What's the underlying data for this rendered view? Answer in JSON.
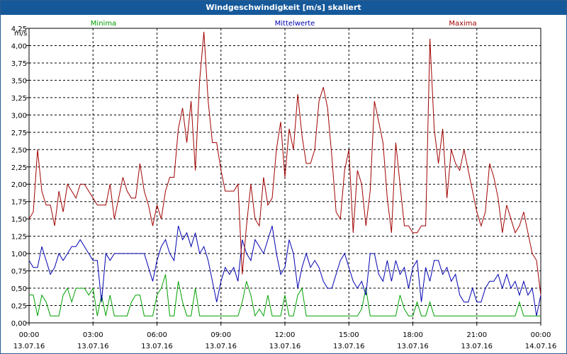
{
  "window": {
    "title": "Windgeschwindigkeit [m/s] skaliert"
  },
  "chart_data": {
    "type": "line",
    "title": "Windgeschwindigkeit [m/s] skaliert",
    "ylabel": "m/s",
    "xlabel": "",
    "ylim": [
      0,
      4.25
    ],
    "xlim_hours": [
      0,
      24
    ],
    "grid": true,
    "yticks": [
      "0,00",
      "0,25",
      "0,50",
      "0,75",
      "1,00",
      "1,25",
      "1,50",
      "1,75",
      "2,00",
      "2,25",
      "2,50",
      "2,75",
      "3,00",
      "3,25",
      "3,50",
      "3,75",
      "4,00",
      "4,25"
    ],
    "xticks": [
      {
        "time": "00:00",
        "date": "13.07.16"
      },
      {
        "time": "03:00",
        "date": "13.07.16"
      },
      {
        "time": "06:00",
        "date": "13.07.16"
      },
      {
        "time": "09:00",
        "date": "13.07.16"
      },
      {
        "time": "12:00",
        "date": "13.07.16"
      },
      {
        "time": "15:00",
        "date": "13.07.16"
      },
      {
        "time": "18:00",
        "date": "13.07.16"
      },
      {
        "time": "21:00",
        "date": "13.07.16"
      },
      {
        "time": "00:00",
        "date": "14.07.16"
      }
    ],
    "x_hours": [
      0,
      0.2,
      0.4,
      0.6,
      0.8,
      1,
      1.2,
      1.4,
      1.6,
      1.8,
      2,
      2.2,
      2.4,
      2.6,
      2.8,
      3,
      3.2,
      3.4,
      3.6,
      3.8,
      4,
      4.2,
      4.4,
      4.6,
      4.8,
      5,
      5.2,
      5.4,
      5.6,
      5.8,
      6,
      6.2,
      6.4,
      6.6,
      6.8,
      7,
      7.2,
      7.4,
      7.6,
      7.8,
      8,
      8.2,
      8.4,
      8.6,
      8.8,
      9,
      9.2,
      9.4,
      9.6,
      9.8,
      10,
      10.2,
      10.4,
      10.6,
      10.8,
      11,
      11.2,
      11.4,
      11.6,
      11.8,
      12,
      12.2,
      12.4,
      12.6,
      12.8,
      13,
      13.2,
      13.4,
      13.6,
      13.8,
      14,
      14.2,
      14.4,
      14.6,
      14.8,
      15,
      15.2,
      15.4,
      15.6,
      15.8,
      16,
      16.2,
      16.4,
      16.6,
      16.8,
      17,
      17.2,
      17.4,
      17.6,
      17.8,
      18,
      18.2,
      18.4,
      18.6,
      18.8,
      19,
      19.2,
      19.4,
      19.6,
      19.8,
      20,
      20.2,
      20.4,
      20.6,
      20.8,
      21,
      21.2,
      21.4,
      21.6,
      21.8,
      22,
      22.2,
      22.4,
      22.6,
      22.8,
      23,
      23.2,
      23.4,
      23.6,
      23.8,
      24
    ],
    "legend": [
      "Minima",
      "Mittelwerte",
      "Maxima"
    ],
    "series": [
      {
        "name": "Minima",
        "color": "#00a000",
        "values": [
          0.4,
          0.4,
          0.1,
          0.4,
          0.3,
          0.1,
          0.1,
          0.1,
          0.4,
          0.5,
          0.3,
          0.5,
          0.5,
          0.5,
          0.4,
          0.5,
          0.1,
          0.4,
          0.1,
          0.4,
          0.1,
          0.1,
          0.1,
          0.1,
          0.3,
          0.4,
          0.4,
          0.1,
          0.1,
          0.1,
          0.4,
          0.5,
          0.7,
          0.1,
          0.1,
          0.6,
          0.3,
          0.1,
          0.1,
          0.5,
          0.1,
          0.1,
          0.1,
          0.1,
          0.1,
          0.1,
          0.1,
          0.1,
          0.1,
          0.1,
          0.3,
          0.6,
          0.4,
          0.1,
          0.2,
          0.1,
          0.4,
          0.1,
          0.1,
          0.1,
          0.4,
          0.1,
          0.1,
          0.4,
          0.5,
          0.1,
          0.1,
          0.1,
          0.1,
          0.1,
          0.1,
          0.1,
          0.1,
          0.1,
          0.1,
          0.1,
          0.1,
          0.1,
          0.2,
          0.5,
          0.1,
          0.1,
          0.1,
          0.1,
          0.1,
          0.1,
          0.1,
          0.4,
          0.2,
          0.1,
          0.1,
          0.3,
          0.1,
          0.1,
          0.3,
          0.1,
          0.1,
          0.1,
          0.1,
          0.1,
          0.1,
          0.1,
          0.1,
          0.1,
          0.1,
          0.1,
          0.1,
          0.1,
          0.1,
          0.1,
          0.1,
          0.1,
          0.1,
          0.1,
          0.1,
          0.3,
          0.1,
          0.1,
          0.1,
          0.1,
          0.1
        ]
      },
      {
        "name": "Mittelwerte",
        "color": "#0000b0",
        "values": [
          0.9,
          0.8,
          0.8,
          1.1,
          0.9,
          0.7,
          0.8,
          1,
          0.9,
          1,
          1.1,
          1.1,
          1.2,
          1.1,
          1,
          0.9,
          0.9,
          0.3,
          1,
          0.9,
          1,
          1,
          1,
          1,
          1,
          1,
          1,
          1,
          0.8,
          0.6,
          0.9,
          1.1,
          1.2,
          1,
          0.9,
          1.4,
          1.2,
          1.3,
          1.1,
          1.3,
          1,
          1.1,
          0.9,
          0.6,
          0.3,
          0.6,
          0.8,
          0.7,
          0.8,
          0.6,
          1.2,
          1,
          0.9,
          1.2,
          1.1,
          1,
          1.2,
          1.4,
          1,
          0.7,
          0.8,
          1.2,
          1,
          0.5,
          0.8,
          1,
          0.8,
          0.9,
          0.8,
          0.6,
          0.5,
          0.5,
          0.7,
          0.9,
          1,
          0.8,
          0.6,
          0.5,
          0.6,
          0.4,
          1,
          1,
          0.7,
          0.6,
          0.9,
          0.6,
          0.9,
          0.7,
          0.8,
          0.5,
          0.8,
          0.9,
          0.3,
          0.8,
          0.6,
          0.9,
          0.9,
          0.7,
          0.8,
          0.6,
          0.7,
          0.4,
          0.3,
          0.3,
          0.5,
          0.3,
          0.3,
          0.5,
          0.6,
          0.6,
          0.7,
          0.5,
          0.7,
          0.5,
          0.6,
          0.4,
          0.6,
          0.4,
          0.5,
          0.1,
          0.4
        ]
      },
      {
        "name": "Maxima",
        "color": "#a00000",
        "values": [
          1.5,
          1.6,
          2.5,
          1.9,
          1.7,
          1.7,
          1.4,
          1.9,
          1.6,
          2,
          1.9,
          1.8,
          2,
          2,
          1.9,
          1.8,
          1.7,
          1.7,
          1.7,
          2,
          1.5,
          1.8,
          2.1,
          1.9,
          1.8,
          1.8,
          2.3,
          1.9,
          1.7,
          1.4,
          1.7,
          1.5,
          1.9,
          2.1,
          2.1,
          2.8,
          3.1,
          2.6,
          3.2,
          2.2,
          3.5,
          4.2,
          3.2,
          2.6,
          2.6,
          2.2,
          1.9,
          1.9,
          1.9,
          2,
          0.7,
          1.4,
          2,
          1.5,
          1.4,
          2.1,
          1.7,
          1.8,
          2.5,
          2.9,
          2.1,
          2.8,
          2.5,
          3.3,
          2.7,
          2.3,
          2.3,
          2.5,
          3.2,
          3.4,
          3.1,
          2.4,
          1.6,
          1.5,
          2.2,
          2.5,
          1.3,
          2.2,
          2.0,
          1.4,
          1.9,
          3.2,
          2.9,
          2.6,
          1.8,
          1.3,
          2.6,
          2.0,
          1.4,
          1.4,
          1.3,
          1.3,
          1.4,
          1.4,
          4.1,
          2.8,
          2.3,
          2.8,
          1.8,
          2.5,
          2.3,
          2.2,
          2.5,
          2.2,
          1.9,
          1.6,
          1.4,
          1.6,
          2.3,
          2.1,
          1.8,
          1.3,
          1.7,
          1.5,
          1.3,
          1.4,
          1.6,
          1.3,
          1.0,
          0.9,
          0.4
        ]
      }
    ]
  }
}
